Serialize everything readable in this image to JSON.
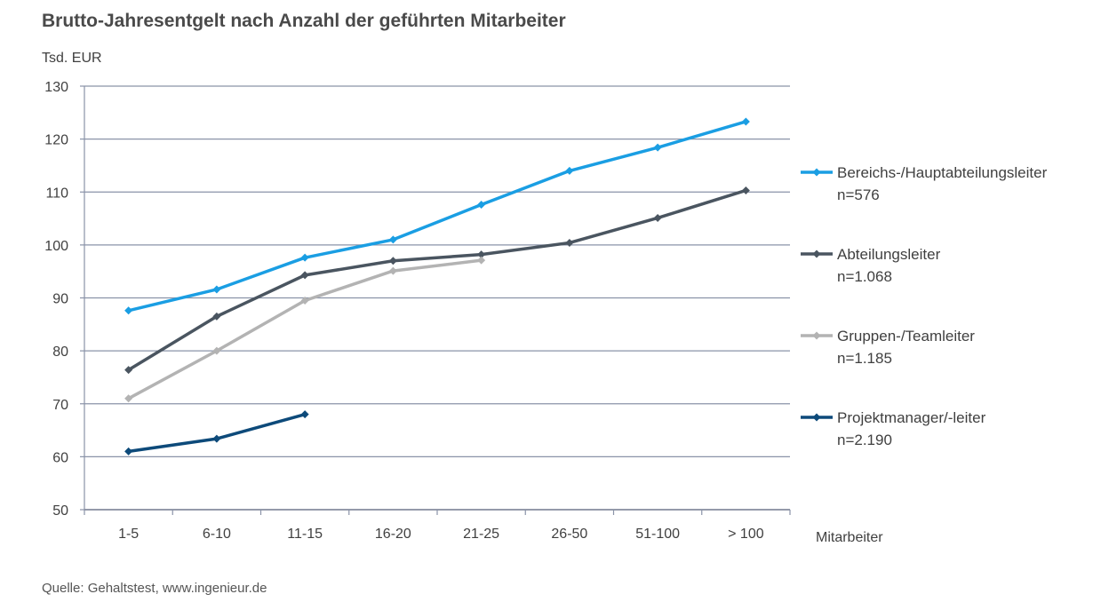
{
  "page": {
    "title": "Brutto-Jahresentgelt nach Anzahl der geführten Mitarbeiter",
    "source": "Quelle: Gehaltstest, www.ingenieur.de"
  },
  "chart_data": {
    "type": "line",
    "title": "Brutto-Jahresentgelt nach Anzahl der geführten Mitarbeiter",
    "ylabel": "Tsd. EUR",
    "xlabel": "Mitarbeiter",
    "ylim": [
      50,
      130
    ],
    "yticks": [
      50,
      60,
      70,
      80,
      90,
      100,
      110,
      120,
      130
    ],
    "grid": true,
    "legend_position": "right",
    "categories": [
      "1-5",
      "6-10",
      "11-15",
      "16-20",
      "21-25",
      "26-50",
      "51-100",
      "> 100"
    ],
    "series": [
      {
        "name": "Bereichs-/Hauptabteilungsleiter",
        "n": "n=576",
        "color": "#1a9ee3",
        "values": [
          87.6,
          91.6,
          97.6,
          101.0,
          107.6,
          114.0,
          118.4,
          123.3
        ]
      },
      {
        "name": "Abteilungsleiter",
        "n": "n=1.068",
        "color": "#4a5560",
        "values": [
          76.4,
          86.5,
          94.3,
          97.0,
          98.2,
          100.4,
          105.1,
          110.3
        ]
      },
      {
        "name": "Gruppen-/Teamleiter",
        "n": "n=1.185",
        "color": "#b3b3b3",
        "values": [
          71.0,
          80.0,
          89.5,
          95.1,
          97.1,
          null,
          null,
          null
        ]
      },
      {
        "name": "Projektmanager/-leiter",
        "n": "n=2.190",
        "color": "#0d4a7a",
        "values": [
          61.0,
          63.4,
          68.0,
          null,
          null,
          null,
          null,
          null
        ]
      }
    ]
  }
}
